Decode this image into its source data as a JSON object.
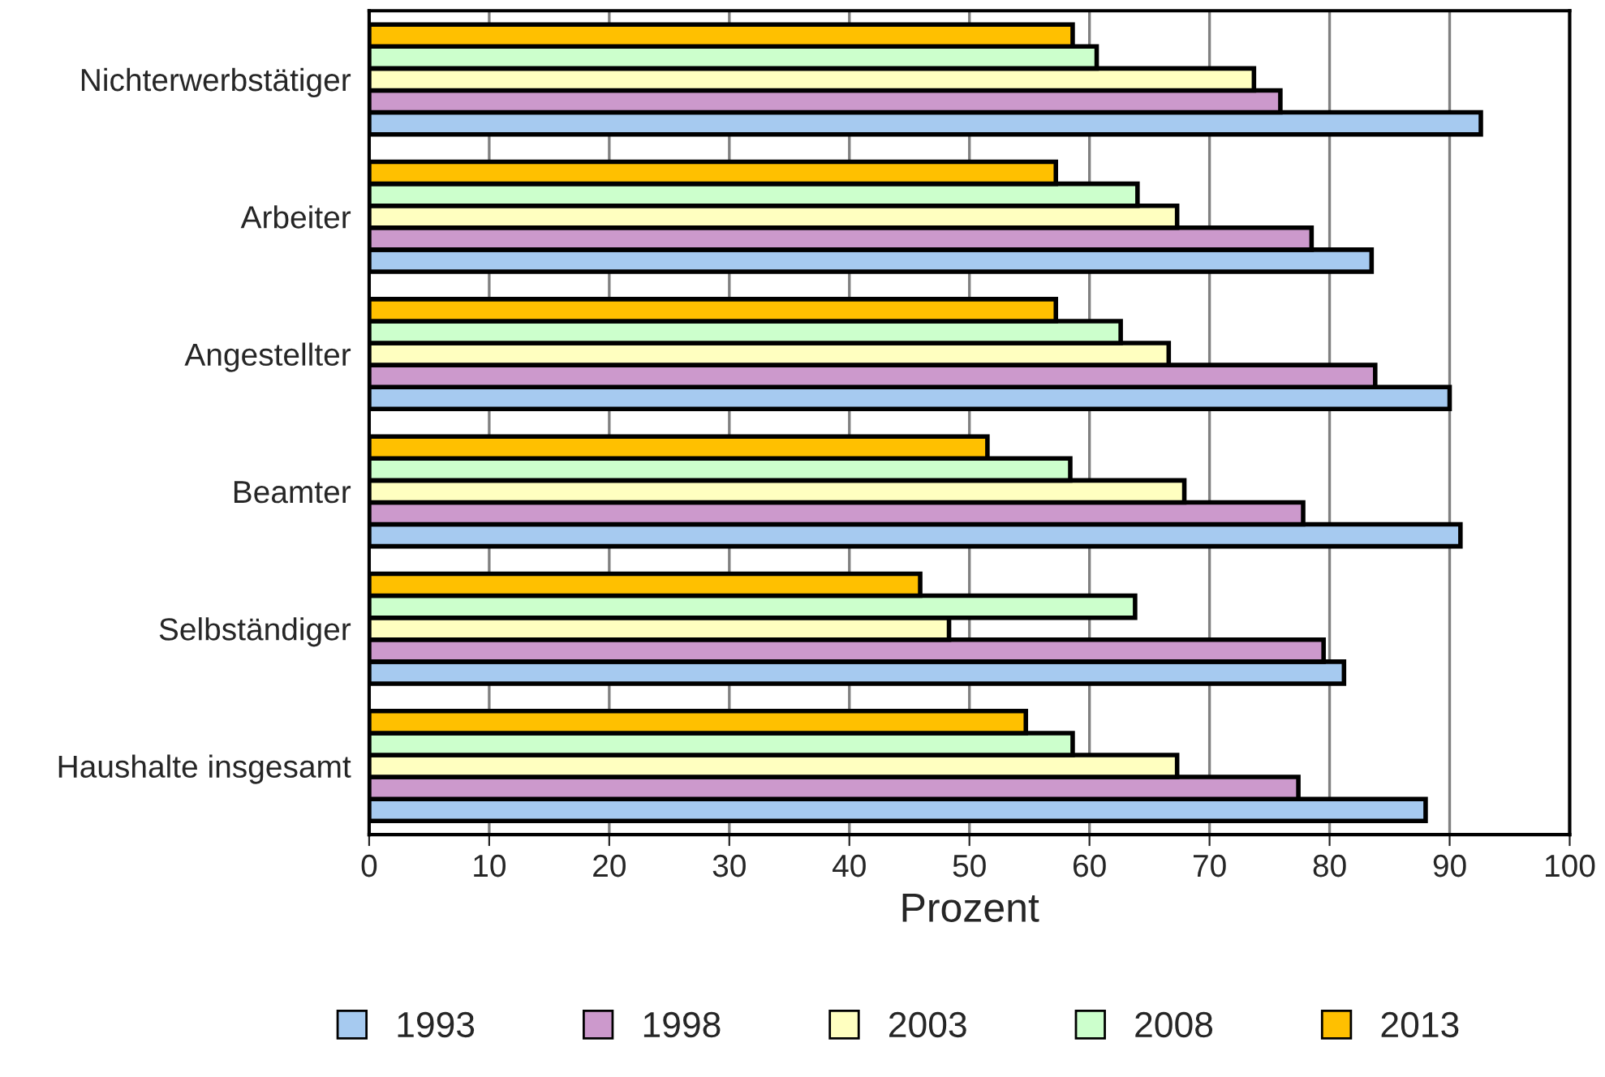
{
  "chart_data": {
    "type": "bar",
    "orientation": "horizontal",
    "xlabel": "Prozent",
    "categories": [
      "Nichterwerbstätiger",
      "Arbeiter",
      "Angestellter",
      "Beamter",
      "Selbständiger",
      "Haushalte insgesamt"
    ],
    "series": [
      {
        "name": "1993",
        "color": "#a6caf0",
        "values": [
          92.6,
          83.5,
          90.0,
          90.9,
          81.2,
          88.0
        ]
      },
      {
        "name": "1998",
        "color": "#cc99cc",
        "values": [
          75.9,
          78.5,
          83.8,
          77.8,
          79.5,
          77.4
        ]
      },
      {
        "name": "2003",
        "color": "#ffffc0",
        "values": [
          73.7,
          67.3,
          66.6,
          67.9,
          48.3,
          67.3
        ]
      },
      {
        "name": "2008",
        "color": "#ccffcc",
        "values": [
          60.6,
          64.0,
          62.6,
          58.4,
          63.8,
          58.6
        ]
      },
      {
        "name": "2013",
        "color": "#ffc000",
        "values": [
          58.6,
          57.2,
          57.2,
          51.5,
          45.9,
          54.7
        ]
      }
    ],
    "xlim": [
      0,
      100
    ],
    "xticks": [
      0,
      10,
      20,
      30,
      40,
      50,
      60,
      70,
      80,
      90,
      100
    ],
    "grid": "x",
    "legend": "bottom"
  }
}
